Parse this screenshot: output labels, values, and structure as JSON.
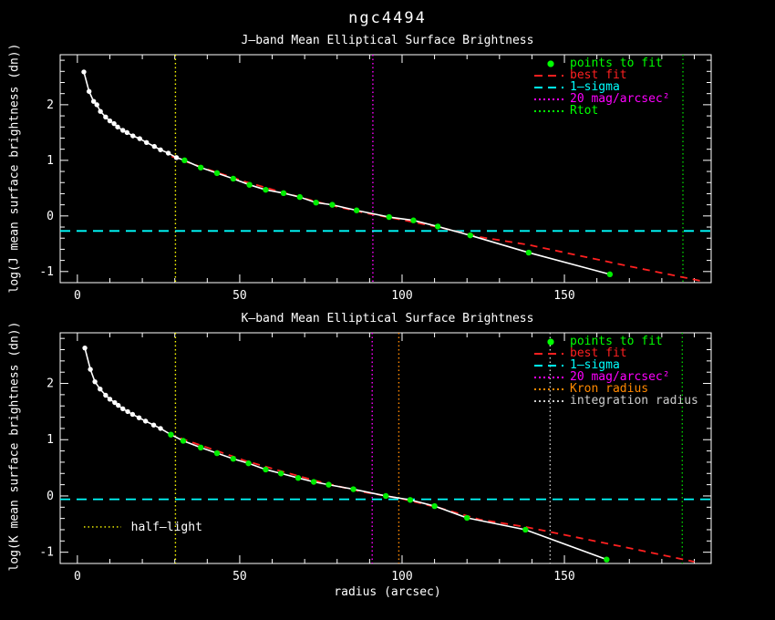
{
  "title": "ngc4494",
  "xlabel": "radius (arcsec)",
  "colors": {
    "background": "#000000",
    "foreground": "#ffffff",
    "points_to_fit": "#00ee00",
    "best_fit": "#ff2020",
    "one_sigma": "#00ffff",
    "mag20": "#ff00ff",
    "rtot": "#00cc00",
    "kron_radius": "#ff8800",
    "integration_radius": "#cccccc",
    "half_light": "#ffff00"
  },
  "chart_data": [
    {
      "type": "line",
      "title": "J—band Mean Elliptical Surface Brightness",
      "ylabel": "log(J mean surface brightness (dn))",
      "xlabel": "",
      "xlim": [
        -5.3,
        195.2
      ],
      "ylim": [
        -1.2,
        2.9
      ],
      "xticks": [
        0,
        50,
        100,
        150
      ],
      "yticks": [
        -1,
        0,
        1,
        2
      ],
      "x_minor_step": 10,
      "y_minor_step": 0.2,
      "grid": false,
      "excluded_points": {
        "x": [
          2,
          3.6,
          5,
          6,
          7.1,
          8.7,
          10,
          11.3,
          12.4,
          14,
          15.3,
          17.1,
          19.2,
          21.3,
          23.7,
          25.6,
          28,
          30.5
        ],
        "y": [
          2.59,
          2.24,
          2.06,
          2.0,
          1.88,
          1.78,
          1.71,
          1.66,
          1.6,
          1.54,
          1.5,
          1.44,
          1.39,
          1.32,
          1.25,
          1.19,
          1.13,
          1.05
        ]
      },
      "fit_points": {
        "x": [
          33,
          38,
          43,
          48,
          53,
          58,
          63.5,
          68.5,
          73.5,
          78.5,
          86,
          96,
          103.5,
          111,
          121,
          139,
          164
        ],
        "y": [
          1.0,
          0.87,
          0.77,
          0.67,
          0.56,
          0.47,
          0.41,
          0.34,
          0.24,
          0.2,
          0.1,
          -0.02,
          -0.08,
          -0.19,
          -0.35,
          -0.66,
          -1.05
        ]
      },
      "best_fit": {
        "x": [
          29,
          40,
          52,
          64,
          76,
          88,
          100,
          112,
          124,
          139,
          155,
          172,
          193
        ],
        "y": [
          1.07,
          0.84,
          0.61,
          0.41,
          0.22,
          0.06,
          -0.07,
          -0.21,
          -0.38,
          -0.52,
          -0.72,
          -0.93,
          -1.18
        ]
      },
      "one_sigma_level": -0.27,
      "vlines": [
        {
          "name": "half-light",
          "x": 30.2,
          "color": "#ffff00"
        },
        {
          "name": "20-mag-arcsec2",
          "x": 91,
          "color": "#ff00ff"
        },
        {
          "name": "rtot",
          "x": 186.5,
          "color": "#00cc00"
        }
      ],
      "legend": [
        {
          "label": "points to fit",
          "color": "#00ff00",
          "marker": "dot"
        },
        {
          "label": "best fit",
          "color": "#ff2020",
          "marker": "dash"
        },
        {
          "label": "1—sigma",
          "color": "#00ffff",
          "marker": "dash"
        },
        {
          "label": "20 mag/arcsec²",
          "color": "#ff00ff",
          "marker": "dots"
        },
        {
          "label": "Rtot",
          "color": "#00ff00",
          "marker": "dots"
        }
      ]
    },
    {
      "type": "line",
      "title": "K—band Mean Elliptical Surface Brightness",
      "ylabel": "log(K mean surface brightness (dn))",
      "xlabel": "radius (arcsec)",
      "xlim": [
        -5.3,
        195.2
      ],
      "ylim": [
        -1.2,
        2.9
      ],
      "xticks": [
        0,
        50,
        100,
        150
      ],
      "yticks": [
        -1,
        0,
        1,
        2
      ],
      "x_minor_step": 10,
      "y_minor_step": 0.2,
      "grid": false,
      "excluded_points": {
        "x": [
          2.3,
          4,
          5.4,
          7,
          8.7,
          10,
          11.5,
          12.6,
          14,
          15.5,
          17,
          19,
          21,
          23.5,
          25.6
        ],
        "y": [
          2.63,
          2.25,
          2.03,
          1.9,
          1.79,
          1.72,
          1.66,
          1.61,
          1.55,
          1.5,
          1.45,
          1.39,
          1.33,
          1.26,
          1.2
        ]
      },
      "fit_points": {
        "x": [
          28.8,
          32.6,
          38,
          43,
          48,
          52.7,
          58,
          62.7,
          68,
          72.8,
          77.4,
          85,
          95,
          102.5,
          110,
          120,
          138,
          163
        ],
        "y": [
          1.09,
          0.98,
          0.86,
          0.76,
          0.66,
          0.58,
          0.47,
          0.4,
          0.32,
          0.25,
          0.2,
          0.12,
          0.0,
          -0.07,
          -0.18,
          -0.39,
          -0.6,
          -1.13
        ]
      },
      "best_fit": {
        "x": [
          28,
          40,
          52,
          64,
          76,
          88,
          100,
          112,
          124,
          138,
          155,
          172,
          190
        ],
        "y": [
          1.1,
          0.86,
          0.62,
          0.42,
          0.23,
          0.07,
          -0.05,
          -0.22,
          -0.42,
          -0.55,
          -0.75,
          -0.95,
          -1.17
        ]
      },
      "one_sigma_level": -0.06,
      "vlines": [
        {
          "name": "half-light",
          "x": 30.2,
          "color": "#ffff00"
        },
        {
          "name": "20-mag-arcsec2",
          "x": 90.8,
          "color": "#ff00ff"
        },
        {
          "name": "kron-radius",
          "x": 99,
          "color": "#ff8800"
        },
        {
          "name": "integration-radius",
          "x": 145.6,
          "color": "#cccccc"
        },
        {
          "name": "rtot",
          "x": 186.3,
          "color": "#00cc00"
        }
      ],
      "annotation": {
        "label": "half—light",
        "color": "#ffff00",
        "line_x1": 2,
        "line_x2": 13.5,
        "y": -0.55,
        "text_x": 16.5
      },
      "legend": [
        {
          "label": "points to fit",
          "color": "#00ff00",
          "marker": "dot"
        },
        {
          "label": "best fit",
          "color": "#ff2020",
          "marker": "dash"
        },
        {
          "label": "1—sigma",
          "color": "#00ffff",
          "marker": "dash"
        },
        {
          "label": "20 mag/arcsec²",
          "color": "#ff00ff",
          "marker": "dots"
        },
        {
          "label": "Kron radius",
          "color": "#ff8800",
          "marker": "dots"
        },
        {
          "label": "integration radius",
          "color": "#cccccc",
          "marker": "dots"
        }
      ]
    }
  ]
}
